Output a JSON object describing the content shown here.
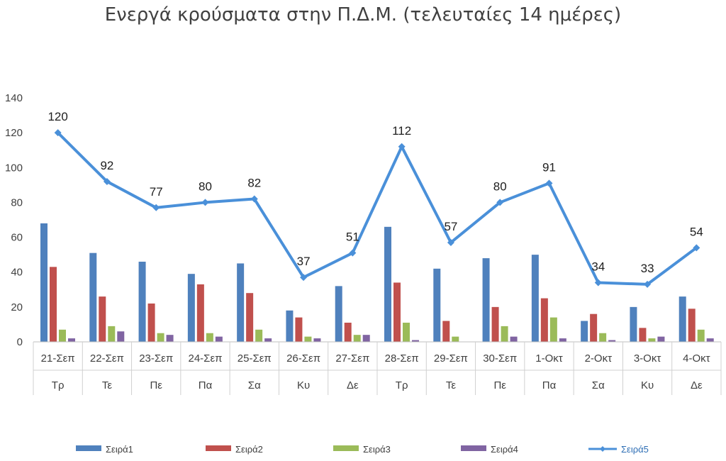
{
  "chart_data": {
    "type": "bar",
    "title": "Ενεργά κρούσματα στην Π.Δ.Μ. (τελευταίες 14 ημέρες)",
    "categories": [
      "21-Σεπ",
      "22-Σεπ",
      "23-Σεπ",
      "24-Σεπ",
      "25-Σεπ",
      "26-Σεπ",
      "27-Σεπ",
      "28-Σεπ",
      "29-Σεπ",
      "30-Σεπ",
      "1-Οκτ",
      "2-Οκτ",
      "3-Οκτ",
      "4-Οκτ"
    ],
    "days": [
      "Τρ",
      "Τε",
      "Πε",
      "Πα",
      "Σα",
      "Κυ",
      "Δε",
      "Τρ",
      "Τε",
      "Πε",
      "Πα",
      "Σα",
      "Κυ",
      "Δε"
    ],
    "ylim": [
      0,
      140
    ],
    "yticks": [
      "0",
      "20",
      "40",
      "60",
      "80",
      "100",
      "120",
      "140"
    ],
    "grid": false,
    "legend_position": "bottom",
    "series": [
      {
        "name": "Σειρά1",
        "kind": "bar",
        "color": "#4f81bd",
        "values": [
          68,
          51,
          46,
          39,
          45,
          18,
          32,
          66,
          42,
          48,
          50,
          12,
          20,
          26
        ]
      },
      {
        "name": "Σειρά2",
        "kind": "bar",
        "color": "#c0504d",
        "values": [
          43,
          26,
          22,
          33,
          28,
          14,
          11,
          34,
          12,
          20,
          25,
          16,
          8,
          19
        ]
      },
      {
        "name": "Σειρά3",
        "kind": "bar",
        "color": "#9bbb59",
        "values": [
          7,
          9,
          5,
          5,
          7,
          3,
          4,
          11,
          3,
          9,
          14,
          5,
          2,
          7
        ]
      },
      {
        "name": "Σειρά4",
        "kind": "bar",
        "color": "#8064a2",
        "values": [
          2,
          6,
          4,
          3,
          2,
          2,
          4,
          1,
          0,
          3,
          2,
          1,
          3,
          2
        ]
      },
      {
        "name": "Σειρά5",
        "kind": "line",
        "color": "#4a90d9",
        "data_labels": true,
        "values": [
          120,
          92,
          77,
          80,
          82,
          37,
          51,
          112,
          57,
          80,
          91,
          34,
          33,
          54
        ]
      }
    ]
  }
}
